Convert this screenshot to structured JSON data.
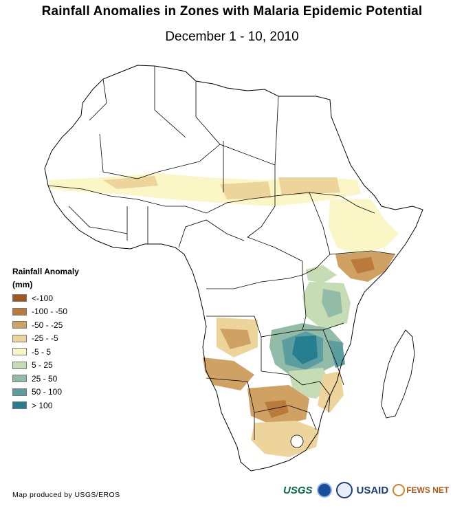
{
  "title": "Rainfall Anomalies in Zones with Malaria Epidemic Potential",
  "subtitle": "December 1 - 10, 2010",
  "legend": {
    "title_line1": "Rainfall Anomaly",
    "title_line2": "(mm)",
    "items": [
      {
        "label": "<-100",
        "color": "#9c5a22"
      },
      {
        "label": "-100 - -50",
        "color": "#b97a3c"
      },
      {
        "label": "-50 - -25",
        "color": "#cfa264"
      },
      {
        "label": "-25 - -5",
        "color": "#ecd49a"
      },
      {
        "label": "-5 - 5",
        "color": "#fbf6c6"
      },
      {
        "label": "5 - 25",
        "color": "#c6dcb4"
      },
      {
        "label": "25 - 50",
        "color": "#93bca8"
      },
      {
        "label": "50 - 100",
        "color": "#5c9ea0"
      },
      {
        "label": "> 100",
        "color": "#257f8e"
      }
    ]
  },
  "credit": "Map produced by USGS/EROS",
  "logos": {
    "usgs": "USGS",
    "usaid": "USAID",
    "fews": "FEWS NET"
  }
}
